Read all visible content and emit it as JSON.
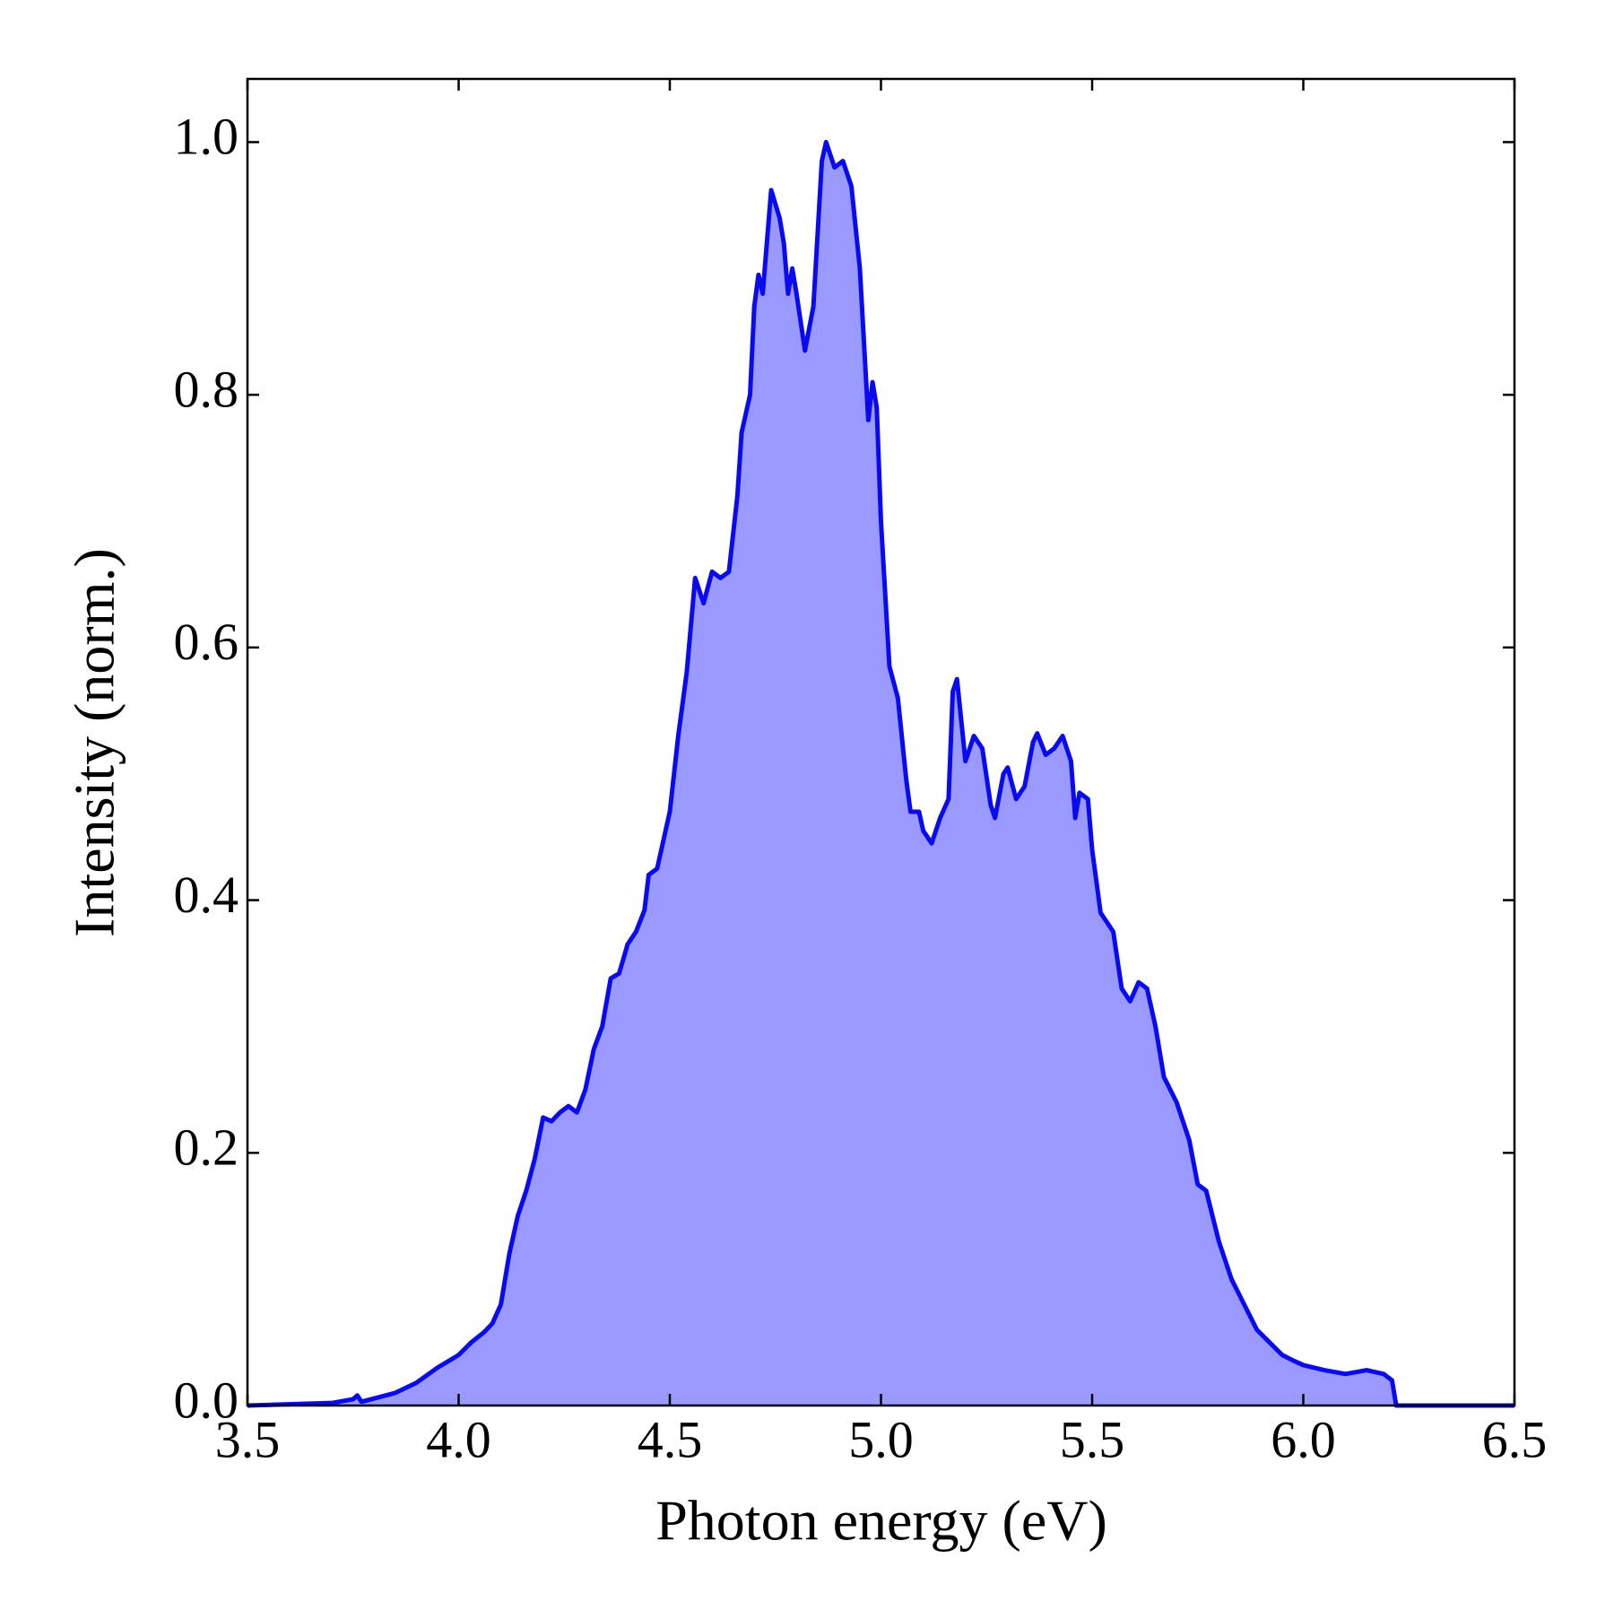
{
  "chart_data": {
    "type": "area",
    "xlabel": "Photon energy (eV)",
    "ylabel": "Intensity (norm.)",
    "xlim": [
      3.5,
      6.5
    ],
    "ylim": [
      0,
      1.05
    ],
    "xticks": [
      3.5,
      {
        "value": 4,
        "label": "4.0"
      },
      4.5,
      {
        "value": 5,
        "label": "5.0"
      },
      5.5,
      {
        "value": 6,
        "label": "6.0"
      },
      6.5
    ],
    "yticks": [
      {
        "value": 0,
        "label": "0.0"
      },
      0.2,
      0.4,
      0.6,
      0.8,
      {
        "value": 1,
        "label": "1.0"
      }
    ],
    "line_color": "#0a0af0",
    "fill_color": "#9999ff",
    "x": [
      3.5,
      3.7,
      3.75,
      3.76,
      3.77,
      3.85,
      3.9,
      3.95,
      4.0,
      4.03,
      4.06,
      4.08,
      4.1,
      4.12,
      4.14,
      4.16,
      4.18,
      4.2,
      4.22,
      4.24,
      4.26,
      4.28,
      4.3,
      4.32,
      4.34,
      4.36,
      4.38,
      4.4,
      4.42,
      4.44,
      4.45,
      4.47,
      4.5,
      4.52,
      4.54,
      4.56,
      4.58,
      4.6,
      4.62,
      4.64,
      4.66,
      4.67,
      4.69,
      4.7,
      4.71,
      4.72,
      4.74,
      4.76,
      4.77,
      4.78,
      4.79,
      4.8,
      4.82,
      4.84,
      4.86,
      4.87,
      4.89,
      4.91,
      4.93,
      4.95,
      4.97,
      4.98,
      4.99,
      5.0,
      5.02,
      5.04,
      5.06,
      5.07,
      5.09,
      5.1,
      5.12,
      5.14,
      5.16,
      5.17,
      5.18,
      5.2,
      5.22,
      5.24,
      5.26,
      5.27,
      5.29,
      5.3,
      5.32,
      5.34,
      5.36,
      5.37,
      5.39,
      5.41,
      5.43,
      5.45,
      5.46,
      5.47,
      5.49,
      5.5,
      5.52,
      5.55,
      5.57,
      5.59,
      5.61,
      5.63,
      5.65,
      5.67,
      5.7,
      5.73,
      5.75,
      5.77,
      5.8,
      5.83,
      5.86,
      5.89,
      5.92,
      5.95,
      5.98,
      6.0,
      6.05,
      6.1,
      6.15,
      6.19,
      6.21,
      6.22,
      6.5
    ],
    "y": [
      0,
      0.002,
      0.005,
      0.008,
      0.003,
      0.01,
      0.018,
      0.03,
      0.04,
      0.05,
      0.058,
      0.065,
      0.08,
      0.12,
      0.15,
      0.17,
      0.195,
      0.228,
      0.225,
      0.232,
      0.237,
      0.232,
      0.25,
      0.282,
      0.3,
      0.338,
      0.342,
      0.365,
      0.375,
      0.392,
      0.42,
      0.425,
      0.47,
      0.53,
      0.58,
      0.655,
      0.635,
      0.66,
      0.655,
      0.66,
      0.72,
      0.77,
      0.8,
      0.87,
      0.895,
      0.88,
      0.962,
      0.94,
      0.92,
      0.88,
      0.9,
      0.88,
      0.835,
      0.87,
      0.985,
      1.0,
      0.98,
      0.985,
      0.965,
      0.9,
      0.78,
      0.81,
      0.79,
      0.7,
      0.585,
      0.56,
      0.495,
      0.47,
      0.47,
      0.455,
      0.445,
      0.465,
      0.48,
      0.565,
      0.575,
      0.51,
      0.53,
      0.52,
      0.475,
      0.465,
      0.5,
      0.505,
      0.48,
      0.49,
      0.525,
      0.532,
      0.515,
      0.52,
      0.53,
      0.51,
      0.465,
      0.485,
      0.48,
      0.44,
      0.39,
      0.375,
      0.33,
      0.32,
      0.335,
      0.33,
      0.3,
      0.26,
      0.24,
      0.21,
      0.175,
      0.17,
      0.13,
      0.1,
      0.08,
      0.06,
      0.05,
      0.04,
      0.035,
      0.032,
      0.028,
      0.025,
      0.028,
      0.025,
      0.02,
      0,
      0
    ]
  }
}
